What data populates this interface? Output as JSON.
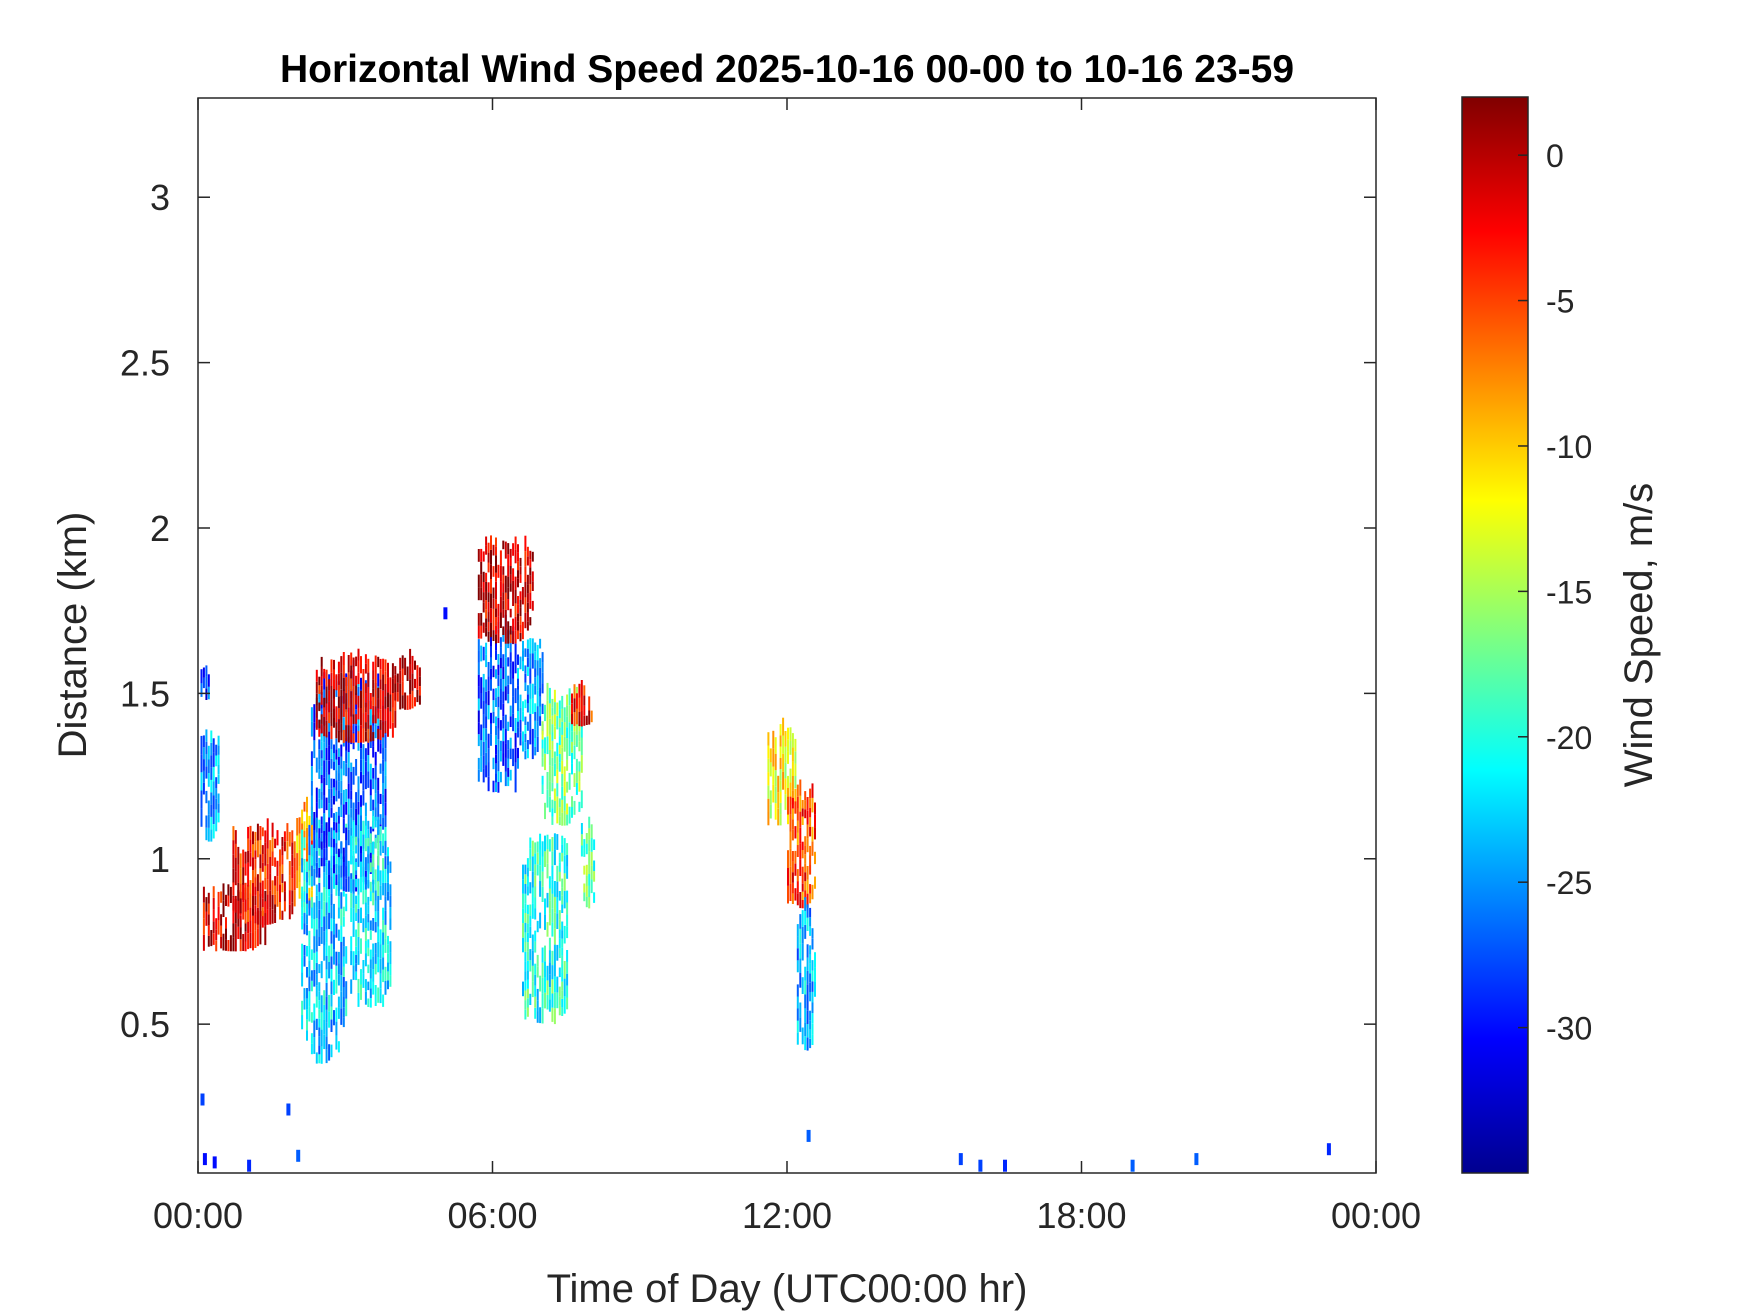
{
  "chart_data": {
    "type": "heatmap",
    "title": "Horizontal Wind Speed 2025-10-16 00-00 to 10-16 23-59",
    "xlabel": "Time of Day (UTC00:00 hr)",
    "ylabel": "Distance (km)",
    "xlim_hours": [
      0,
      24
    ],
    "ylim_km": [
      0.05,
      3.3
    ],
    "x_ticks": [
      {
        "value": 0,
        "label": "00:00"
      },
      {
        "value": 6,
        "label": "06:00"
      },
      {
        "value": 12,
        "label": "12:00"
      },
      {
        "value": 18,
        "label": "18:00"
      },
      {
        "value": 24,
        "label": "00:00"
      }
    ],
    "y_ticks": [
      {
        "value": 0.5,
        "label": "0.5"
      },
      {
        "value": 1,
        "label": "1"
      },
      {
        "value": 1.5,
        "label": "1.5"
      },
      {
        "value": 2,
        "label": "2"
      },
      {
        "value": 2.5,
        "label": "2.5"
      },
      {
        "value": 3,
        "label": "3"
      }
    ],
    "grid": false,
    "colorbar": {
      "label": "Wind Speed, m/s",
      "colormap": "jet",
      "range": [
        -35,
        2
      ],
      "ticks": [
        0,
        -5,
        -10,
        -15,
        -20,
        -25,
        -30
      ],
      "tick_labels": [
        "0",
        "-5",
        "-10",
        "-15",
        "-20",
        "-25",
        "-30"
      ]
    },
    "clusters": [
      {
        "t": [
          0.05,
          0.4
        ],
        "h": [
          1.05,
          1.38
        ],
        "v": -25
      },
      {
        "t": [
          0.05,
          0.25
        ],
        "h": [
          1.48,
          1.56
        ],
        "v": -28
      },
      {
        "t": [
          0.1,
          1.4
        ],
        "h": [
          0.72,
          0.9
        ],
        "v": -1
      },
      {
        "t": [
          0.7,
          2.0
        ],
        "h": [
          0.8,
          1.08
        ],
        "v": -3
      },
      {
        "t": [
          2.0,
          2.3
        ],
        "h": [
          0.85,
          1.15
        ],
        "v": -8
      },
      {
        "t": [
          2.1,
          3.0
        ],
        "h": [
          0.38,
          1.1
        ],
        "v": -23
      },
      {
        "t": [
          2.3,
          3.8
        ],
        "h": [
          0.9,
          1.55
        ],
        "v": -27
      },
      {
        "t": [
          2.4,
          4.0
        ],
        "h": [
          1.35,
          1.6
        ],
        "v": -1
      },
      {
        "t": [
          3.1,
          3.9
        ],
        "h": [
          0.55,
          1.1
        ],
        "v": -22
      },
      {
        "t": [
          4.0,
          4.5
        ],
        "h": [
          1.45,
          1.6
        ],
        "v": 0
      },
      {
        "t": [
          5.7,
          6.5
        ],
        "h": [
          1.2,
          1.7
        ],
        "v": -27
      },
      {
        "t": [
          5.7,
          6.8
        ],
        "h": [
          1.65,
          1.95
        ],
        "v": -1
      },
      {
        "t": [
          6.5,
          7.0
        ],
        "h": [
          1.3,
          1.65
        ],
        "v": -25
      },
      {
        "t": [
          6.6,
          7.5
        ],
        "h": [
          0.5,
          1.05
        ],
        "v": -20
      },
      {
        "t": [
          7.0,
          7.8
        ],
        "h": [
          1.1,
          1.5
        ],
        "v": -17
      },
      {
        "t": [
          7.6,
          8.0
        ],
        "h": [
          1.4,
          1.5
        ],
        "v": -3
      },
      {
        "t": [
          7.8,
          8.1
        ],
        "h": [
          0.85,
          1.1
        ],
        "v": -18
      },
      {
        "t": [
          11.6,
          12.2
        ],
        "h": [
          1.1,
          1.38
        ],
        "v": -12
      },
      {
        "t": [
          12.0,
          12.6
        ],
        "h": [
          0.85,
          1.2
        ],
        "v": -5
      },
      {
        "t": [
          12.2,
          12.6
        ],
        "h": [
          0.42,
          0.85
        ],
        "v": -24
      }
    ],
    "scatter": [
      {
        "t": 0.05,
        "h": 0.26,
        "v": -28
      },
      {
        "t": 0.1,
        "h": 0.08,
        "v": -30
      },
      {
        "t": 0.3,
        "h": 0.07,
        "v": -30
      },
      {
        "t": 1.8,
        "h": 0.23,
        "v": -28
      },
      {
        "t": 2.0,
        "h": 0.09,
        "v": -27
      },
      {
        "t": 1.0,
        "h": 0.06,
        "v": -29
      },
      {
        "t": 5.0,
        "h": 1.73,
        "v": -30
      },
      {
        "t": 12.4,
        "h": 0.15,
        "v": -27
      },
      {
        "t": 15.5,
        "h": 0.08,
        "v": -28
      },
      {
        "t": 16.4,
        "h": 0.06,
        "v": -29
      },
      {
        "t": 19.0,
        "h": 0.06,
        "v": -27
      },
      {
        "t": 20.3,
        "h": 0.08,
        "v": -27
      },
      {
        "t": 23.0,
        "h": 0.11,
        "v": -29
      },
      {
        "t": 15.9,
        "h": 0.06,
        "v": -28
      }
    ]
  }
}
